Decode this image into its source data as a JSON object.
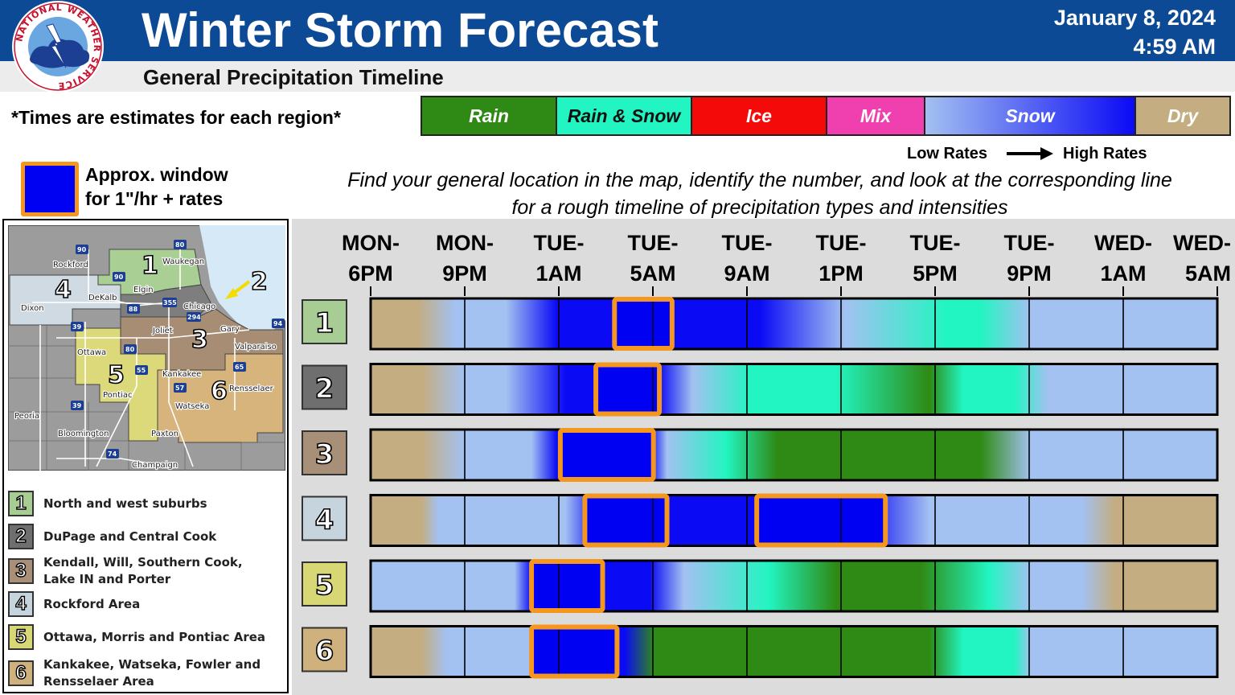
{
  "header": {
    "logo_text": "NATIONAL WEATHER SERVICE",
    "title": "Winter Storm Forecast",
    "date": "January 8, 2024",
    "time": "4:59 AM",
    "subtitle": "General Precipitation Timeline"
  },
  "note": "*Times are estimates for each region*",
  "precip_legend": [
    {
      "label": "Rain",
      "color": "#2e8a14"
    },
    {
      "label": "Rain & Snow",
      "color": "#22f5c1"
    },
    {
      "label": "Ice",
      "color": "#f50a0a"
    },
    {
      "label": "Mix",
      "color": "#f03fae"
    },
    {
      "label": "Snow",
      "color_low": "#a3c1f1",
      "color_high": "#0a0af5"
    },
    {
      "label": "Dry",
      "color": "#c4ad80"
    }
  ],
  "rates": {
    "low": "Low Rates",
    "high": "High Rates"
  },
  "rate_key": {
    "line1": "Approx. window",
    "line2": "for 1\"/hr + rates",
    "box_color": "#0000f2",
    "border_color": "#f5961e"
  },
  "instructions": {
    "line1": "Find your general location in the map, identify the number, and look at the corresponding line",
    "line2": "for a rough timeline of precipitation types and intensities"
  },
  "map": {
    "city_labels": [
      "Rockford",
      "Waukegan",
      "Elgin",
      "DeKalb",
      "Dixon",
      "Chicago",
      "Joliet",
      "Gary",
      "Valparaiso",
      "Ottawa",
      "Kankakee",
      "Rensselaer",
      "Pontiac",
      "Watseka",
      "Peoria",
      "Bloomington",
      "Paxton",
      "Champaign"
    ],
    "route_labels": [
      "90",
      "80",
      "90",
      "88",
      "355",
      "294",
      "39",
      "80",
      "94",
      "65",
      "55",
      "57",
      "39",
      "74"
    ],
    "region_numbers": [
      "1",
      "2",
      "3",
      "4",
      "5",
      "6"
    ]
  },
  "regions": [
    {
      "num": "1",
      "name": "North and west suburbs",
      "color": "#a7cd94"
    },
    {
      "num": "2",
      "name": "DuPage and Central Cook",
      "color": "#6f6f6f"
    },
    {
      "num": "3",
      "name": "Kendall, Will, Southern Cook, Lake IN and Porter",
      "color": "#a78f78"
    },
    {
      "num": "4",
      "name": "Rockford Area",
      "color": "#c6d4de"
    },
    {
      "num": "5",
      "name": "Ottawa, Morris and Pontiac Area",
      "color": "#d8d776"
    },
    {
      "num": "6",
      "name": "Kankakee, Watseka, Fowler and Rensselaer Area",
      "color": "#cfb17d"
    }
  ],
  "timeline": {
    "time_labels": [
      {
        "day": "MON-",
        "hour": "6PM"
      },
      {
        "day": "MON-",
        "hour": "9PM"
      },
      {
        "day": "TUE-",
        "hour": "1AM"
      },
      {
        "day": "TUE-",
        "hour": "5AM"
      },
      {
        "day": "TUE-",
        "hour": "9AM"
      },
      {
        "day": "TUE-",
        "hour": "1PM"
      },
      {
        "day": "TUE-",
        "hour": "5PM"
      },
      {
        "day": "TUE-",
        "hour": "9PM"
      },
      {
        "day": "WED-",
        "hour": "1AM"
      },
      {
        "day": "WED-",
        "hour": "5AM"
      }
    ],
    "rows": [
      {
        "region": "1",
        "stops": [
          [
            "dry",
            0
          ],
          [
            "dry",
            0.055
          ],
          [
            "snowL",
            0.1
          ],
          [
            "snowL",
            0.16
          ],
          [
            "snowH",
            0.22
          ],
          [
            "snowH",
            0.46
          ],
          [
            "snowL",
            0.56
          ],
          [
            "rs",
            0.68
          ],
          [
            "rs",
            0.72
          ],
          [
            "snowL",
            0.78
          ],
          [
            "snowL",
            1
          ]
        ],
        "heavy": [
          [
            0.288,
            0.356
          ]
        ]
      },
      {
        "region": "2",
        "stops": [
          [
            "dry",
            0
          ],
          [
            "dry",
            0.06
          ],
          [
            "snowL",
            0.11
          ],
          [
            "snowL",
            0.16
          ],
          [
            "snowH",
            0.23
          ],
          [
            "snowH",
            0.34
          ],
          [
            "snowL",
            0.38
          ],
          [
            "rs",
            0.45
          ],
          [
            "rs",
            0.55
          ],
          [
            "rain",
            0.66
          ],
          [
            "rs",
            0.7
          ],
          [
            "rs",
            0.76
          ],
          [
            "snowL",
            0.8
          ],
          [
            "snowL",
            1
          ]
        ],
        "heavy": [
          [
            0.266,
            0.341
          ]
        ]
      },
      {
        "region": "3",
        "stops": [
          [
            "dry",
            0
          ],
          [
            "dry",
            0.06
          ],
          [
            "snowL",
            0.11
          ],
          [
            "snowL",
            0.19
          ],
          [
            "snowH",
            0.22
          ],
          [
            "snowH",
            0.33
          ],
          [
            "snowL",
            0.35
          ],
          [
            "rs",
            0.42
          ],
          [
            "rain",
            0.48
          ],
          [
            "rain",
            0.58
          ],
          [
            "rain",
            0.62
          ],
          [
            "rain",
            0.72
          ],
          [
            "snowL",
            0.78
          ],
          [
            "snowL",
            1
          ]
        ],
        "heavy": [
          [
            0.224,
            0.334
          ]
        ]
      },
      {
        "region": "4",
        "stops": [
          [
            "dry",
            0
          ],
          [
            "dry",
            0.06
          ],
          [
            "snowL",
            0.08
          ],
          [
            "snowL",
            0.23
          ],
          [
            "snowH",
            0.27
          ],
          [
            "snowH",
            0.58
          ],
          [
            "snowL",
            0.66
          ],
          [
            "snowL",
            0.84
          ],
          [
            "dry",
            0.88
          ],
          [
            "dry",
            1
          ]
        ],
        "heavy": [
          [
            0.253,
            0.35
          ],
          [
            0.456,
            0.608
          ]
        ]
      },
      {
        "region": "5",
        "stops": [
          [
            "snowL",
            0
          ],
          [
            "snowL",
            0.17
          ],
          [
            "snowH",
            0.19
          ],
          [
            "snowH",
            0.33
          ],
          [
            "snowL",
            0.37
          ],
          [
            "rs",
            0.47
          ],
          [
            "rain",
            0.55
          ],
          [
            "rain",
            0.65
          ],
          [
            "rs",
            0.73
          ],
          [
            "snowL",
            0.78
          ],
          [
            "snowL",
            0.84
          ],
          [
            "dry",
            0.88
          ],
          [
            "dry",
            1
          ]
        ],
        "heavy": [
          [
            0.19,
            0.274
          ]
        ]
      },
      {
        "region": "6",
        "stops": [
          [
            "dry",
            0
          ],
          [
            "dry",
            0.06
          ],
          [
            "snowL",
            0.09
          ],
          [
            "snowL",
            0.19
          ],
          [
            "snowH",
            0.21
          ],
          [
            "snowH",
            0.3
          ],
          [
            "rain",
            0.335
          ],
          [
            "rain",
            0.66
          ],
          [
            "rs",
            0.7
          ],
          [
            "rs",
            0.76
          ],
          [
            "snowL",
            0.78
          ],
          [
            "snowL",
            1
          ]
        ],
        "heavy": [
          [
            0.19,
            0.291
          ]
        ]
      }
    ]
  }
}
